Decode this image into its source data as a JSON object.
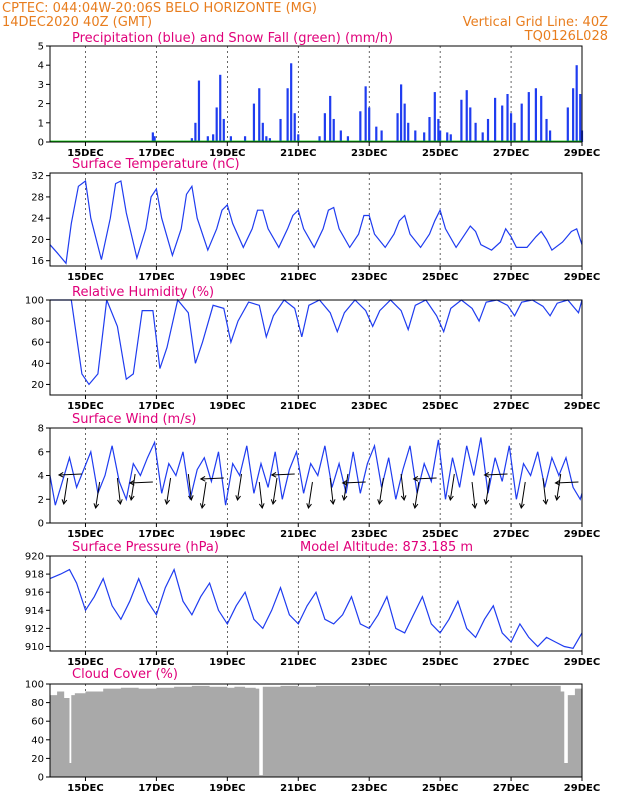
{
  "header": {
    "line1": "CPTEC:  044:04W-20:06S  BELO HORIZONTE (MG)",
    "line2": "14DEC2020 40Z (GMT)",
    "grid_note": "Vertical Grid Line: 40Z",
    "code": "TQ0126L028"
  },
  "colors": {
    "precip": "#1f3cf0",
    "snow": "#00c000",
    "line": "#1f3cf0",
    "cloud": "#a9a9a9",
    "title": "#e0007a",
    "header": "#e87d1e"
  },
  "chart_data": [
    {
      "type": "bar",
      "title": "Precipitation (blue) and Snow Fall (green) (mm/h)",
      "x_ticks": [
        "15DEC",
        "17DEC",
        "19DEC",
        "21DEC",
        "23DEC",
        "25DEC",
        "27DEC",
        "29DEC"
      ],
      "ylim": [
        0,
        5
      ],
      "y_ticks": [
        0,
        1,
        2,
        3,
        4,
        5
      ],
      "grid": "vertical-dashed",
      "series": [
        {
          "name": "Precipitation",
          "x_days": [
            16.9,
            16.95,
            18.0,
            18.1,
            18.2,
            18.45,
            18.6,
            18.7,
            18.8,
            18.9,
            19.1,
            19.5,
            19.75,
            19.9,
            20.0,
            20.1,
            20.2,
            20.5,
            20.7,
            20.8,
            20.9,
            21.0,
            21.6,
            21.75,
            21.9,
            22.0,
            22.2,
            22.4,
            22.75,
            22.9,
            23.0,
            23.2,
            23.35,
            23.8,
            23.9,
            24.0,
            24.1,
            24.3,
            24.55,
            24.7,
            24.85,
            24.95,
            25.0,
            25.2,
            25.3,
            25.6,
            25.75,
            25.85,
            26.0,
            26.2,
            26.35,
            26.55,
            26.75,
            26.9,
            27.0,
            27.1,
            27.3,
            27.5,
            27.7,
            27.85,
            28.0,
            28.1,
            28.6,
            28.75,
            28.85,
            28.95,
            29.0
          ],
          "values": [
            0.5,
            0.3,
            0.2,
            1.0,
            3.2,
            0.3,
            0.4,
            1.8,
            3.5,
            1.2,
            0.3,
            0.3,
            2.0,
            2.8,
            1.0,
            0.3,
            0.2,
            1.2,
            2.8,
            4.1,
            1.5,
            0.4,
            0.3,
            1.5,
            2.4,
            1.2,
            0.6,
            0.3,
            1.6,
            2.9,
            1.8,
            0.8,
            0.6,
            1.5,
            3.0,
            2.0,
            1.0,
            0.6,
            0.5,
            1.3,
            2.6,
            1.2,
            0.6,
            0.5,
            0.4,
            2.2,
            2.7,
            1.8,
            1.0,
            0.5,
            1.2,
            2.3,
            1.9,
            2.5,
            1.5,
            1.0,
            2.0,
            2.6,
            2.8,
            2.4,
            1.2,
            0.6,
            1.8,
            2.8,
            4.0,
            2.5,
            0.6
          ]
        },
        {
          "name": "Snow Fall",
          "values": [
            0,
            0,
            0,
            0,
            0,
            0,
            0,
            0
          ]
        }
      ]
    },
    {
      "type": "line",
      "title": "Surface Temperature (nC)",
      "ylim": [
        15,
        32.5
      ],
      "y_ticks": [
        16,
        20,
        24,
        28,
        32
      ],
      "x_ticks": [
        "15DEC",
        "17DEC",
        "19DEC",
        "21DEC",
        "23DEC",
        "25DEC",
        "27DEC",
        "29DEC"
      ],
      "series": [
        {
          "name": "Surface Temperature",
          "x_days": [
            14.0,
            14.2,
            14.45,
            14.6,
            14.8,
            15.0,
            15.15,
            15.45,
            15.7,
            15.85,
            16.0,
            16.15,
            16.45,
            16.7,
            16.85,
            17.0,
            17.15,
            17.45,
            17.7,
            17.85,
            18.0,
            18.15,
            18.45,
            18.7,
            18.85,
            19.0,
            19.15,
            19.45,
            19.7,
            19.85,
            20.0,
            20.15,
            20.45,
            20.7,
            20.85,
            21.0,
            21.15,
            21.45,
            21.7,
            21.85,
            22.0,
            22.15,
            22.45,
            22.7,
            22.85,
            23.0,
            23.15,
            23.45,
            23.7,
            23.85,
            24.0,
            24.15,
            24.45,
            24.7,
            24.85,
            25.0,
            25.15,
            25.45,
            25.7,
            25.85,
            26.0,
            26.15,
            26.45,
            26.7,
            26.85,
            27.0,
            27.15,
            27.45,
            27.7,
            27.85,
            28.0,
            28.15,
            28.45,
            28.7,
            28.85,
            29.0
          ],
          "values": [
            19.0,
            17.5,
            15.5,
            23.0,
            30.0,
            31.0,
            24.0,
            16.2,
            24.0,
            30.5,
            31.0,
            25.0,
            16.5,
            22.0,
            28.0,
            29.5,
            24.0,
            17.0,
            22.0,
            28.5,
            30.0,
            24.0,
            18.0,
            22.0,
            25.5,
            26.5,
            23.0,
            18.5,
            22.0,
            25.5,
            25.5,
            22.0,
            18.5,
            22.0,
            24.5,
            25.5,
            22.0,
            18.5,
            22.0,
            25.5,
            26.0,
            22.0,
            18.5,
            21.0,
            24.5,
            24.5,
            21.0,
            18.5,
            21.0,
            23.5,
            24.5,
            21.0,
            18.5,
            21.0,
            23.5,
            25.5,
            22.0,
            18.5,
            21.0,
            22.5,
            21.5,
            19.0,
            18.0,
            19.5,
            22.0,
            20.5,
            18.5,
            18.5,
            20.5,
            21.5,
            20.0,
            18.0,
            19.5,
            21.5,
            22.0,
            19.0
          ]
        }
      ]
    },
    {
      "type": "line",
      "title": "Relative Humidity (%)",
      "ylim": [
        10,
        100
      ],
      "y_ticks": [
        20,
        40,
        60,
        80,
        100
      ],
      "x_ticks": [
        "15DEC",
        "17DEC",
        "19DEC",
        "21DEC",
        "23DEC",
        "25DEC",
        "27DEC",
        "29DEC"
      ],
      "series": [
        {
          "name": "Relative Humidity",
          "x_days": [
            14.0,
            14.3,
            14.6,
            14.9,
            15.1,
            15.35,
            15.6,
            15.9,
            16.15,
            16.35,
            16.6,
            16.9,
            17.1,
            17.3,
            17.6,
            17.9,
            18.1,
            18.3,
            18.6,
            18.9,
            19.1,
            19.3,
            19.6,
            19.9,
            20.1,
            20.3,
            20.6,
            20.9,
            21.1,
            21.3,
            21.6,
            21.9,
            22.1,
            22.3,
            22.6,
            22.9,
            23.1,
            23.3,
            23.6,
            23.9,
            24.1,
            24.3,
            24.6,
            24.9,
            25.1,
            25.3,
            25.6,
            25.9,
            26.1,
            26.3,
            26.6,
            26.9,
            27.1,
            27.3,
            27.6,
            27.9,
            28.1,
            28.3,
            28.6,
            28.9,
            29.0
          ],
          "values": [
            100,
            100,
            100,
            30,
            20,
            30,
            100,
            75,
            25,
            30,
            90,
            90,
            35,
            55,
            100,
            88,
            40,
            60,
            95,
            92,
            60,
            80,
            98,
            95,
            65,
            85,
            100,
            92,
            65,
            95,
            100,
            88,
            70,
            88,
            100,
            90,
            75,
            90,
            100,
            90,
            72,
            95,
            100,
            85,
            70,
            92,
            100,
            92,
            80,
            98,
            100,
            95,
            85,
            98,
            100,
            94,
            85,
            97,
            100,
            88,
            100
          ]
        }
      ]
    },
    {
      "type": "line",
      "title": "Surface Wind (m/s)",
      "ylim": [
        0,
        8
      ],
      "y_ticks": [
        0,
        2,
        4,
        6,
        8
      ],
      "x_ticks": [
        "15DEC",
        "17DEC",
        "19DEC",
        "21DEC",
        "23DEC",
        "25DEC",
        "27DEC",
        "29DEC"
      ],
      "series": [
        {
          "name": "Surface Wind",
          "x_days": [
            14.0,
            14.15,
            14.35,
            14.55,
            14.75,
            14.95,
            15.15,
            15.35,
            15.55,
            15.75,
            15.95,
            16.15,
            16.35,
            16.55,
            16.75,
            16.95,
            17.15,
            17.35,
            17.55,
            17.75,
            17.95,
            18.15,
            18.35,
            18.55,
            18.75,
            18.95,
            19.15,
            19.35,
            19.55,
            19.75,
            19.95,
            20.15,
            20.35,
            20.55,
            20.75,
            20.95,
            21.15,
            21.35,
            21.55,
            21.75,
            21.95,
            22.15,
            22.35,
            22.55,
            22.75,
            22.95,
            23.15,
            23.35,
            23.55,
            23.75,
            23.95,
            24.15,
            24.35,
            24.55,
            24.75,
            24.95,
            25.15,
            25.35,
            25.55,
            25.75,
            25.95,
            26.15,
            26.35,
            26.55,
            26.75,
            26.95,
            27.15,
            27.35,
            27.55,
            27.75,
            27.95,
            28.15,
            28.35,
            28.55,
            28.75,
            28.95,
            29.0
          ],
          "values": [
            4.0,
            1.5,
            3.5,
            5.5,
            3.0,
            4.5,
            6.0,
            2.5,
            4.0,
            6.5,
            3.5,
            2.0,
            5.0,
            4.0,
            5.5,
            6.8,
            2.5,
            5.0,
            4.0,
            6.0,
            2.0,
            4.5,
            5.5,
            3.5,
            6.0,
            1.5,
            5.0,
            4.0,
            6.5,
            2.5,
            5.0,
            3.0,
            6.0,
            2.0,
            4.5,
            6.0,
            2.5,
            5.0,
            4.0,
            6.5,
            3.0,
            5.0,
            2.5,
            6.0,
            2.5,
            5.0,
            6.5,
            3.0,
            5.5,
            2.0,
            4.5,
            6.5,
            2.5,
            5.0,
            3.5,
            7.0,
            2.0,
            5.5,
            3.0,
            6.5,
            4.0,
            7.2,
            2.5,
            5.5,
            3.5,
            6.5,
            2.0,
            5.0,
            4.0,
            6.0,
            3.0,
            5.5,
            4.0,
            5.5,
            3.0,
            2.0,
            2.5
          ]
        }
      ],
      "arrow_days": [
        14.5,
        14.9,
        15.4,
        15.9,
        16.4,
        16.9,
        17.4,
        17.9,
        18.4,
        18.9,
        19.4,
        19.9,
        20.4,
        20.9,
        21.4,
        21.9,
        22.4,
        22.9,
        23.4,
        23.9,
        24.4,
        24.9,
        25.4,
        25.9,
        26.4,
        26.9,
        27.4,
        27.9,
        28.4,
        28.9
      ]
    },
    {
      "type": "line",
      "title": "Surface Pressure (hPa)",
      "annotation": "Model Altitude: 873.185 m",
      "ylim": [
        909.5,
        920
      ],
      "y_ticks": [
        910,
        912,
        914,
        916,
        918,
        920
      ],
      "x_ticks": [
        "15DEC",
        "17DEC",
        "19DEC",
        "21DEC",
        "23DEC",
        "25DEC",
        "27DEC",
        "29DEC"
      ],
      "series": [
        {
          "name": "Surface Pressure",
          "x_days": [
            14.0,
            14.3,
            14.55,
            14.75,
            15.0,
            15.25,
            15.5,
            15.75,
            16.0,
            16.25,
            16.5,
            16.75,
            17.0,
            17.25,
            17.5,
            17.75,
            18.0,
            18.25,
            18.5,
            18.75,
            19.0,
            19.25,
            19.5,
            19.75,
            20.0,
            20.25,
            20.5,
            20.75,
            21.0,
            21.25,
            21.5,
            21.75,
            22.0,
            22.25,
            22.5,
            22.75,
            23.0,
            23.25,
            23.5,
            23.75,
            24.0,
            24.25,
            24.5,
            24.75,
            25.0,
            25.25,
            25.5,
            25.75,
            26.0,
            26.25,
            26.5,
            26.75,
            27.0,
            27.25,
            27.5,
            27.75,
            28.0,
            28.25,
            28.5,
            28.75,
            29.0
          ],
          "values": [
            917.5,
            918.0,
            918.5,
            917.0,
            914.0,
            915.5,
            917.5,
            914.5,
            913.0,
            915.0,
            917.5,
            915.0,
            913.5,
            916.5,
            918.5,
            915.0,
            913.5,
            915.5,
            917.0,
            914.0,
            912.5,
            914.5,
            916.0,
            913.0,
            912.0,
            914.0,
            916.5,
            913.5,
            912.5,
            914.5,
            916.0,
            913.0,
            912.5,
            913.5,
            915.5,
            912.5,
            912.0,
            913.5,
            915.5,
            912.0,
            911.5,
            913.5,
            915.5,
            912.5,
            911.5,
            913.0,
            915.0,
            912.0,
            911.0,
            913.0,
            914.5,
            911.5,
            910.5,
            912.5,
            911.0,
            910.0,
            911.0,
            910.5,
            910.0,
            909.8,
            911.5
          ]
        }
      ]
    },
    {
      "type": "area",
      "title": "Cloud Cover (%)",
      "ylim": [
        0,
        100
      ],
      "y_ticks": [
        0,
        20,
        40,
        60,
        80,
        100
      ],
      "x_ticks": [
        "15DEC",
        "17DEC",
        "19DEC",
        "21DEC",
        "23DEC",
        "25DEC",
        "27DEC",
        "29DEC"
      ],
      "series": [
        {
          "name": "Cloud Cover",
          "x_days": [
            14.0,
            14.2,
            14.4,
            14.55,
            14.6,
            14.7,
            15.0,
            15.5,
            16.0,
            16.5,
            17.0,
            17.5,
            18.0,
            18.5,
            19.0,
            19.2,
            19.5,
            19.8,
            19.9,
            20.0,
            20.5,
            21.0,
            21.5,
            22.0,
            22.5,
            23.0,
            23.5,
            24.0,
            24.5,
            25.0,
            25.5,
            26.0,
            26.5,
            27.0,
            27.5,
            28.0,
            28.4,
            28.5,
            28.6,
            28.8,
            29.0
          ],
          "values": [
            88,
            92,
            85,
            15,
            88,
            90,
            92,
            95,
            96,
            95,
            96,
            97,
            98,
            97,
            96,
            97,
            96,
            95,
            2,
            97,
            98,
            97,
            98,
            98,
            98,
            98,
            98,
            98,
            98,
            98,
            98,
            98,
            98,
            98,
            98,
            98,
            92,
            15,
            88,
            95,
            96
          ]
        }
      ]
    }
  ]
}
